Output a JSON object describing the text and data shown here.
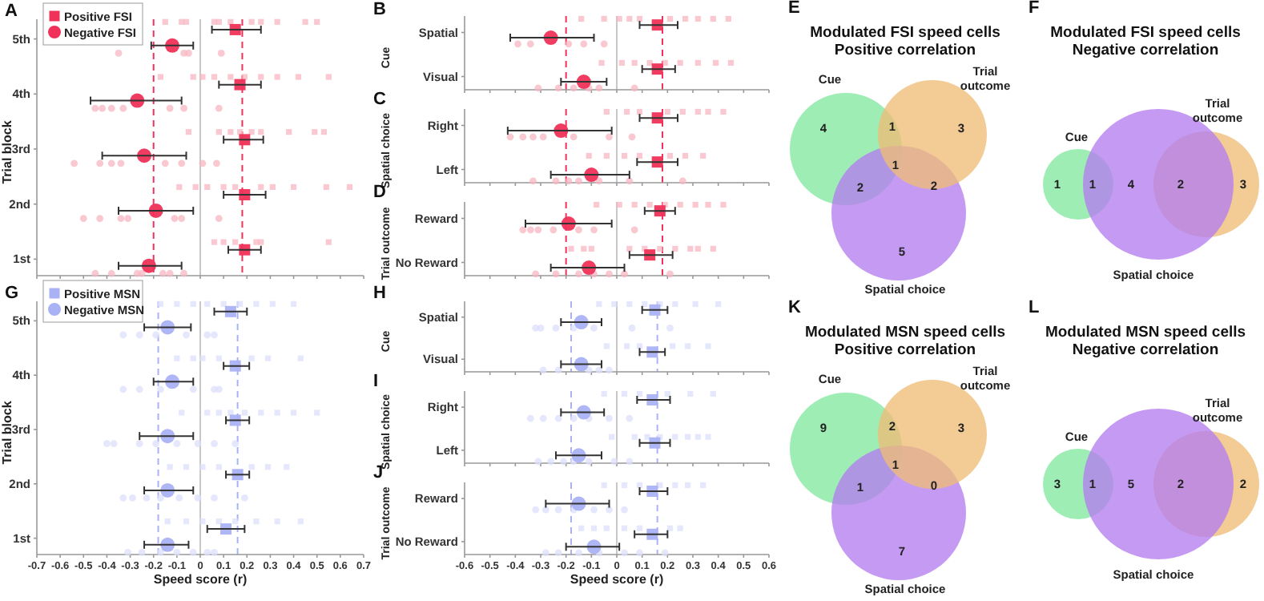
{
  "chart_data": [
    {
      "type": "scatter",
      "orientation": "horizontal",
      "annotations": [
        "A"
      ],
      "ylabel": "Trial block",
      "categories": [
        "5th",
        "4th",
        "3rd",
        "2nd",
        "1st"
      ],
      "xlim": [
        -0.7,
        0.7
      ],
      "xticks": [
        -0.7,
        -0.6,
        -0.5,
        -0.4,
        -0.3,
        -0.2,
        -0.1,
        0,
        0.1,
        0.2,
        0.3,
        0.4,
        0.5,
        0.6,
        0.7
      ],
      "tick_labels": "y",
      "legend": "top left",
      "ref_lines": [
        {
          "axis": "x",
          "value": 0,
          "color": "#c8c8c8",
          "line_style": "solid"
        },
        {
          "axis": "x",
          "value": -0.2,
          "color": "#f0325a",
          "line_style": "dashed"
        },
        {
          "axis": "x",
          "value": 0.18,
          "color": "#f0325a",
          "line_style": "dashed"
        }
      ],
      "series": [
        {
          "marker": "square",
          "color": "#f7b5c0",
          "x": [
            "5th",
            "5th",
            "5th",
            "5th",
            "5th",
            "5th",
            "5th",
            "5th",
            "5th",
            "5th",
            "5th",
            "4th",
            "4th",
            "4th",
            "4th",
            "4th",
            "4th",
            "4th",
            "4th",
            "4th",
            "4th",
            "3rd",
            "3rd",
            "3rd",
            "3rd",
            "3rd",
            "3rd",
            "3rd",
            "3rd",
            "3rd",
            "2nd",
            "2nd",
            "2nd",
            "2nd",
            "2nd",
            "2nd",
            "2nd",
            "2nd",
            "2nd",
            "2nd",
            "1st",
            "1st",
            "1st",
            "1st",
            "1st",
            "1st"
          ],
          "values": [
            -0.15,
            -0.08,
            -0.06,
            0.06,
            0.08,
            0.13,
            0.22,
            0.26,
            0.33,
            0.45,
            0.5,
            -0.17,
            -0.03,
            0.01,
            0.06,
            0.13,
            0.19,
            0.26,
            0.33,
            0.42,
            0.55,
            -0.05,
            0.08,
            0.13,
            0.17,
            0.22,
            0.26,
            0.38,
            0.49,
            0.53,
            -0.09,
            -0.02,
            0.03,
            0.1,
            0.15,
            0.26,
            0.31,
            0.4,
            0.54,
            0.64,
            0.06,
            0.1,
            0.15,
            0.24,
            0.26,
            0.55
          ]
        },
        {
          "marker": "circle",
          "color": "#f7b5c0",
          "x": [
            "5th",
            "5th",
            "5th",
            "5th",
            "4th",
            "4th",
            "4th",
            "4th",
            "4th",
            "4th",
            "4th",
            "3rd",
            "3rd",
            "3rd",
            "3rd",
            "3rd",
            "3rd",
            "3rd",
            "3rd",
            "2nd",
            "2nd",
            "2nd",
            "2nd",
            "2nd",
            "2nd",
            "2nd",
            "1st",
            "1st",
            "1st",
            "1st",
            "1st",
            "1st",
            "1st"
          ],
          "values": [
            -0.35,
            -0.07,
            -0.05,
            0.09,
            -0.45,
            -0.42,
            -0.38,
            -0.33,
            -0.13,
            -0.07,
            0.08,
            -0.54,
            -0.43,
            -0.38,
            -0.34,
            -0.15,
            -0.08,
            0.01,
            0.07,
            -0.5,
            -0.43,
            -0.34,
            -0.31,
            -0.11,
            -0.08,
            0.08,
            -0.45,
            -0.38,
            -0.27,
            -0.25,
            -0.16,
            -0.13,
            -0.07
          ]
        },
        {
          "name": "Positive FSI",
          "marker": "square",
          "color": "#f0325a",
          "values": [
            0.15,
            0.17,
            0.19,
            0.19,
            0.19
          ],
          "errors": [
            [
              0.05,
              0.26
            ],
            [
              0.08,
              0.26
            ],
            [
              0.1,
              0.27
            ],
            [
              0.1,
              0.28
            ],
            [
              0.12,
              0.26
            ]
          ]
        },
        {
          "name": "Negative FSI",
          "marker": "circle",
          "color": "#f0325a",
          "values": [
            -0.12,
            -0.27,
            -0.24,
            -0.19,
            -0.22
          ],
          "errors": [
            [
              -0.21,
              -0.03
            ],
            [
              -0.47,
              -0.08
            ],
            [
              -0.42,
              -0.06
            ],
            [
              -0.35,
              -0.03
            ],
            [
              -0.35,
              -0.08
            ]
          ]
        }
      ]
    },
    {
      "type": "scatter",
      "orientation": "horizontal",
      "annotations": [
        "B"
      ],
      "ylabel": "Cue",
      "categories": [
        "Spatial",
        "Visual"
      ],
      "xlim": [
        -0.6,
        0.6
      ],
      "xticks": [
        -0.6,
        -0.5,
        -0.4,
        -0.3,
        -0.2,
        -0.1,
        0,
        0.1,
        0.2,
        0.3,
        0.4,
        0.5,
        0.6
      ],
      "tick_labels": "y",
      "ref_lines": [
        {
          "axis": "x",
          "value": 0,
          "color": "#c8c8c8",
          "line_style": "solid"
        },
        {
          "axis": "x",
          "value": -0.2,
          "color": "#f0325a",
          "line_style": "dashed"
        },
        {
          "axis": "x",
          "value": 0.18,
          "color": "#f0325a",
          "line_style": "dashed"
        }
      ],
      "series": [
        {
          "marker": "square",
          "color": "#f7b5c0",
          "x": [
            "Spatial",
            "Spatial",
            "Spatial",
            "Spatial",
            "Spatial",
            "Spatial",
            "Spatial",
            "Spatial",
            "Spatial",
            "Spatial",
            "Visual",
            "Visual",
            "Visual",
            "Visual",
            "Visual",
            "Visual",
            "Visual",
            "Visual",
            "Visual"
          ],
          "values": [
            -0.14,
            -0.05,
            0.01,
            0.05,
            0.09,
            0.21,
            0.27,
            0.32,
            0.38,
            0.44,
            -0.06,
            0.02,
            0.07,
            0.13,
            0.19,
            0.25,
            0.32,
            0.39,
            0.45
          ]
        },
        {
          "marker": "circle",
          "color": "#f7b5c0",
          "x": [
            "Spatial",
            "Spatial",
            "Spatial",
            "Spatial",
            "Spatial",
            "Visual",
            "Visual",
            "Visual",
            "Visual",
            "Visual",
            "Visual"
          ],
          "values": [
            -0.39,
            -0.34,
            -0.19,
            -0.13,
            -0.05,
            -0.31,
            -0.23,
            -0.17,
            -0.11,
            -0.07,
            0.07
          ]
        },
        {
          "marker": "square",
          "color": "#f0325a",
          "values": [
            0.16,
            0.16
          ],
          "errors": [
            [
              0.09,
              0.24
            ],
            [
              0.1,
              0.23
            ]
          ]
        },
        {
          "marker": "circle",
          "color": "#f0325a",
          "values": [
            -0.26,
            -0.13
          ],
          "errors": [
            [
              -0.42,
              -0.09
            ],
            [
              -0.22,
              -0.04
            ]
          ]
        }
      ]
    },
    {
      "type": "scatter",
      "orientation": "horizontal",
      "annotations": [
        "C"
      ],
      "ylabel": "Spatial choice",
      "categories": [
        "Right",
        "Left"
      ],
      "xlim": [
        -0.6,
        0.6
      ],
      "xticks": [
        -0.6,
        -0.5,
        -0.4,
        -0.3,
        -0.2,
        -0.1,
        0,
        0.1,
        0.2,
        0.3,
        0.4,
        0.5,
        0.6
      ],
      "tick_labels": "y",
      "ref_lines": [
        {
          "axis": "x",
          "value": 0,
          "color": "#c8c8c8",
          "line_style": "solid"
        },
        {
          "axis": "x",
          "value": -0.2,
          "color": "#f0325a",
          "line_style": "dashed"
        },
        {
          "axis": "x",
          "value": 0.18,
          "color": "#f0325a",
          "line_style": "dashed"
        }
      ],
      "series": [
        {
          "marker": "square",
          "color": "#f7b5c0",
          "x": [
            "Right",
            "Right",
            "Right",
            "Right",
            "Right",
            "Right",
            "Right",
            "Right",
            "Left",
            "Left",
            "Left",
            "Left",
            "Left",
            "Left",
            "Left"
          ],
          "values": [
            -0.04,
            0.04,
            0.09,
            0.2,
            0.26,
            0.32,
            0.36,
            0.42,
            -0.11,
            -0.04,
            0.03,
            0.09,
            0.21,
            0.27,
            0.34
          ]
        },
        {
          "marker": "circle",
          "color": "#f7b5c0",
          "x": [
            "Right",
            "Right",
            "Right",
            "Right",
            "Right",
            "Right",
            "Right",
            "Left",
            "Left",
            "Left",
            "Left",
            "Left",
            "Left",
            "Left"
          ],
          "values": [
            -0.42,
            -0.37,
            -0.33,
            -0.29,
            -0.17,
            -0.03,
            0.06,
            -0.33,
            -0.24,
            -0.19,
            -0.15,
            -0.07,
            0.05,
            0.26
          ]
        },
        {
          "marker": "square",
          "color": "#f0325a",
          "values": [
            0.16,
            0.16
          ],
          "errors": [
            [
              0.09,
              0.24
            ],
            [
              0.08,
              0.24
            ]
          ]
        },
        {
          "marker": "circle",
          "color": "#f0325a",
          "values": [
            -0.22,
            -0.1
          ],
          "errors": [
            [
              -0.43,
              -0.02
            ],
            [
              -0.26,
              0.05
            ]
          ]
        }
      ]
    },
    {
      "type": "scatter",
      "orientation": "horizontal",
      "annotations": [
        "D"
      ],
      "ylabel": "Trial outcome",
      "categories": [
        "Reward",
        "No Reward"
      ],
      "xlim": [
        -0.6,
        0.6
      ],
      "xticks": [
        -0.6,
        -0.5,
        -0.4,
        -0.3,
        -0.2,
        -0.1,
        0,
        0.1,
        0.2,
        0.3,
        0.4,
        0.5,
        0.6
      ],
      "tick_labels": "y",
      "ref_lines": [
        {
          "axis": "x",
          "value": 0,
          "color": "#c8c8c8",
          "line_style": "solid"
        },
        {
          "axis": "x",
          "value": -0.2,
          "color": "#f0325a",
          "line_style": "dashed"
        },
        {
          "axis": "x",
          "value": 0.18,
          "color": "#f0325a",
          "line_style": "dashed"
        }
      ],
      "series": [
        {
          "marker": "square",
          "color": "#f7b5c0",
          "x": [
            "Reward",
            "Reward",
            "Reward",
            "Reward",
            "Reward",
            "Reward",
            "Reward",
            "Reward",
            "Reward",
            "No Reward",
            "No Reward",
            "No Reward",
            "No Reward",
            "No Reward",
            "No Reward",
            "No Reward",
            "No Reward",
            "No Reward",
            "No Reward"
          ],
          "values": [
            -0.08,
            0.01,
            0.07,
            0.13,
            0.19,
            0.25,
            0.31,
            0.36,
            0.42,
            -0.18,
            -0.13,
            -0.1,
            0.05,
            0.11,
            0.17,
            0.23,
            0.29,
            0.32,
            0.38
          ]
        },
        {
          "marker": "circle",
          "color": "#f7b5c0",
          "x": [
            "Reward",
            "Reward",
            "Reward",
            "Reward",
            "Reward",
            "Reward",
            "Reward",
            "No Reward",
            "No Reward",
            "No Reward",
            "No Reward",
            "No Reward",
            "No Reward",
            "No Reward"
          ],
          "values": [
            -0.37,
            -0.34,
            -0.31,
            -0.25,
            -0.15,
            -0.09,
            0.07,
            -0.32,
            -0.24,
            -0.15,
            -0.09,
            -0.03,
            0.03,
            0.21
          ]
        },
        {
          "marker": "square",
          "color": "#f0325a",
          "values": [
            0.17,
            0.13
          ],
          "errors": [
            [
              0.11,
              0.23
            ],
            [
              0.05,
              0.22
            ]
          ]
        },
        {
          "marker": "circle",
          "color": "#f0325a",
          "values": [
            -0.19,
            -0.11
          ],
          "errors": [
            [
              -0.36,
              -0.02
            ],
            [
              -0.26,
              0.03
            ]
          ]
        }
      ]
    },
    {
      "type": "other",
      "annotations": [
        "E",
        "4",
        "3",
        "5",
        "1",
        "2",
        "2",
        "1"
      ],
      "title": "Modulated FSI speed cells",
      "subtitle": "Positive correlation",
      "categories": [
        "Cue",
        "Trial outcome",
        "Spatial choice"
      ],
      "colors": [
        "#82e8a0",
        "#eebd77",
        "#b57ef0"
      ]
    },
    {
      "type": "other",
      "annotations": [
        "F",
        "1",
        "3",
        "4",
        "1",
        "2"
      ],
      "title": "Modulated FSI speed cells",
      "subtitle": "Negative correlation",
      "categories": [
        "Cue",
        "Trial outcome",
        "Spatial choice"
      ],
      "colors": [
        "#82e8a0",
        "#eebd77",
        "#b57ef0"
      ]
    },
    {
      "type": "scatter",
      "orientation": "horizontal",
      "annotations": [
        "G"
      ],
      "ylabel": "Trial block",
      "xlabel": "Speed score (r)",
      "categories": [
        "5th",
        "4th",
        "3rd",
        "2nd",
        "1st"
      ],
      "xlim": [
        -0.7,
        0.7
      ],
      "xticks": [
        -0.7,
        -0.6,
        -0.5,
        -0.4,
        -0.3,
        -0.2,
        -0.1,
        0,
        0.1,
        0.2,
        0.3,
        0.4,
        0.5,
        0.6,
        0.7
      ],
      "legend": "top left",
      "ref_lines": [
        {
          "axis": "x",
          "value": 0,
          "color": "#c8c8c8",
          "line_style": "solid"
        },
        {
          "axis": "x",
          "value": -0.18,
          "color": "#aab2f6",
          "line_style": "dashed"
        },
        {
          "axis": "x",
          "value": 0.16,
          "color": "#aab2f6",
          "line_style": "dashed"
        }
      ],
      "series": [
        {
          "marker": "square",
          "color": "#dcdffb",
          "x": [
            "5th",
            "5th",
            "5th",
            "5th",
            "5th",
            "5th",
            "5th",
            "5th",
            "5th",
            "4th",
            "4th",
            "4th",
            "4th",
            "4th",
            "4th",
            "4th",
            "3rd",
            "3rd",
            "3rd",
            "3rd",
            "3rd",
            "3rd",
            "3rd",
            "3rd",
            "3rd",
            "2nd",
            "2nd",
            "2nd",
            "2nd",
            "2nd",
            "2nd",
            "2nd",
            "1st",
            "1st",
            "1st",
            "1st",
            "1st",
            "1st",
            "1st",
            "1st"
          ],
          "values": [
            -0.17,
            -0.1,
            -0.03,
            0.03,
            0.1,
            0.17,
            0.24,
            0.31,
            0.4,
            -0.1,
            -0.03,
            0.01,
            0.08,
            0.22,
            0.29,
            0.43,
            -0.08,
            0.03,
            0.08,
            0.13,
            0.19,
            0.26,
            0.33,
            0.4,
            0.5,
            -0.13,
            -0.06,
            0.01,
            0.08,
            0.22,
            0.29,
            0.37,
            -0.14,
            -0.06,
            0.01,
            0.08,
            0.15,
            0.24,
            0.33,
            0.43
          ]
        },
        {
          "marker": "circle",
          "color": "#dcdffb",
          "x": [
            "5th",
            "5th",
            "5th",
            "5th",
            "5th",
            "5th",
            "4th",
            "4th",
            "4th",
            "4th",
            "4th",
            "4th",
            "3rd",
            "3rd",
            "3rd",
            "3rd",
            "3rd",
            "3rd",
            "3rd",
            "3rd",
            "2nd",
            "2nd",
            "2nd",
            "2nd",
            "2nd",
            "2nd",
            "2nd",
            "2nd",
            "1st",
            "1st",
            "1st",
            "1st",
            "1st",
            "1st",
            "1st"
          ],
          "values": [
            -0.33,
            -0.26,
            -0.19,
            -0.06,
            0.03,
            0.06,
            -0.33,
            -0.26,
            -0.17,
            -0.03,
            0.06,
            0.08,
            -0.4,
            -0.37,
            -0.26,
            -0.19,
            -0.1,
            -0.01,
            0.06,
            0.15,
            -0.33,
            -0.29,
            -0.23,
            -0.17,
            -0.09,
            -0.01,
            0.06,
            0.19,
            -0.31,
            -0.25,
            -0.17,
            -0.1,
            -0.03,
            0.03,
            0.06
          ]
        },
        {
          "name": "Positive MSN",
          "marker": "square",
          "color": "#aab2f6",
          "values": [
            0.13,
            0.15,
            0.15,
            0.16,
            0.11
          ],
          "errors": [
            [
              0.06,
              0.2
            ],
            [
              0.1,
              0.21
            ],
            [
              0.11,
              0.21
            ],
            [
              0.11,
              0.21
            ],
            [
              0.03,
              0.19
            ]
          ]
        },
        {
          "name": "Negative MSN",
          "marker": "circle",
          "color": "#aab2f6",
          "values": [
            -0.14,
            -0.12,
            -0.14,
            -0.14,
            -0.14
          ],
          "errors": [
            [
              -0.24,
              -0.04
            ],
            [
              -0.2,
              -0.03
            ],
            [
              -0.26,
              -0.03
            ],
            [
              -0.24,
              -0.03
            ],
            [
              -0.24,
              -0.05
            ]
          ]
        }
      ]
    },
    {
      "type": "scatter",
      "orientation": "horizontal",
      "annotations": [
        "H"
      ],
      "ylabel": "Cue",
      "categories": [
        "Spatial",
        "Visual"
      ],
      "xlim": [
        -0.6,
        0.6
      ],
      "xticks": [
        -0.6,
        -0.5,
        -0.4,
        -0.3,
        -0.2,
        -0.1,
        0,
        0.1,
        0.2,
        0.3,
        0.4,
        0.5,
        0.6
      ],
      "tick_labels": "y",
      "ref_lines": [
        {
          "axis": "x",
          "value": 0,
          "color": "#c8c8c8",
          "line_style": "solid"
        },
        {
          "axis": "x",
          "value": -0.18,
          "color": "#aab2f6",
          "line_style": "dashed"
        },
        {
          "axis": "x",
          "value": 0.16,
          "color": "#aab2f6",
          "line_style": "dashed"
        }
      ],
      "series": [
        {
          "marker": "square",
          "color": "#dcdffb",
          "x": [
            "Spatial",
            "Spatial",
            "Spatial",
            "Spatial",
            "Spatial",
            "Spatial",
            "Spatial",
            "Spatial",
            "Visual",
            "Visual",
            "Visual",
            "Visual",
            "Visual",
            "Visual"
          ],
          "values": [
            -0.07,
            -0.01,
            0.05,
            0.11,
            0.17,
            0.23,
            0.31,
            0.4,
            -0.04,
            0.04,
            0.09,
            0.22,
            0.28,
            0.36
          ]
        },
        {
          "marker": "circle",
          "color": "#dcdffb",
          "x": [
            "Spatial",
            "Spatial",
            "Spatial",
            "Spatial",
            "Spatial",
            "Spatial",
            "Spatial",
            "Visual",
            "Visual",
            "Visual",
            "Visual",
            "Visual"
          ],
          "values": [
            -0.32,
            -0.3,
            -0.24,
            -0.17,
            -0.09,
            0.06,
            0.21,
            -0.29,
            -0.23,
            -0.11,
            -0.07,
            -0.03
          ]
        },
        {
          "marker": "square",
          "color": "#aab2f6",
          "values": [
            0.15,
            0.14
          ],
          "errors": [
            [
              0.1,
              0.2
            ],
            [
              0.09,
              0.19
            ]
          ]
        },
        {
          "marker": "circle",
          "color": "#aab2f6",
          "values": [
            -0.14,
            -0.14
          ],
          "errors": [
            [
              -0.22,
              -0.06
            ],
            [
              -0.22,
              -0.06
            ]
          ]
        }
      ]
    },
    {
      "type": "scatter",
      "orientation": "horizontal",
      "annotations": [
        "I"
      ],
      "ylabel": "Spatial choice",
      "categories": [
        "Right",
        "Left"
      ],
      "xlim": [
        -0.6,
        0.6
      ],
      "xticks": [
        -0.6,
        -0.5,
        -0.4,
        -0.3,
        -0.2,
        -0.1,
        0,
        0.1,
        0.2,
        0.3,
        0.4,
        0.5,
        0.6
      ],
      "tick_labels": "y",
      "ref_lines": [
        {
          "axis": "x",
          "value": 0,
          "color": "#c8c8c8",
          "line_style": "solid"
        },
        {
          "axis": "x",
          "value": -0.18,
          "color": "#aab2f6",
          "line_style": "dashed"
        },
        {
          "axis": "x",
          "value": 0.16,
          "color": "#aab2f6",
          "line_style": "dashed"
        }
      ],
      "series": [
        {
          "marker": "square",
          "color": "#dcdffb",
          "x": [
            "Right",
            "Right",
            "Right",
            "Right",
            "Right",
            "Right",
            "Left",
            "Left",
            "Left",
            "Left",
            "Left",
            "Left",
            "Left",
            "Left"
          ],
          "values": [
            -0.05,
            0.03,
            0.09,
            0.2,
            0.29,
            0.38,
            -0.02,
            0.07,
            0.12,
            0.17,
            0.23,
            0.28,
            0.32,
            0.36
          ]
        },
        {
          "marker": "circle",
          "color": "#dcdffb",
          "x": [
            "Right",
            "Right",
            "Right",
            "Right",
            "Right",
            "Right",
            "Right",
            "Left",
            "Left",
            "Left",
            "Left",
            "Left",
            "Left",
            "Left"
          ],
          "values": [
            -0.34,
            -0.29,
            -0.23,
            -0.17,
            -0.11,
            -0.03,
            0.05,
            -0.31,
            -0.26,
            -0.21,
            -0.17,
            -0.11,
            -0.01,
            0.05
          ]
        },
        {
          "marker": "square",
          "color": "#aab2f6",
          "values": [
            0.14,
            0.15
          ],
          "errors": [
            [
              0.08,
              0.21
            ],
            [
              0.09,
              0.21
            ]
          ]
        },
        {
          "marker": "circle",
          "color": "#aab2f6",
          "values": [
            -0.13,
            -0.15
          ],
          "errors": [
            [
              -0.22,
              -0.05
            ],
            [
              -0.24,
              -0.06
            ]
          ]
        }
      ]
    },
    {
      "type": "scatter",
      "orientation": "horizontal",
      "annotations": [
        "J"
      ],
      "ylabel": "Trial outcome",
      "xlabel": "Speed score (r)",
      "categories": [
        "Reward",
        "No Reward"
      ],
      "xlim": [
        -0.6,
        0.6
      ],
      "xticks": [
        -0.6,
        -0.5,
        -0.4,
        -0.3,
        -0.2,
        -0.1,
        0,
        0.1,
        0.2,
        0.3,
        0.4,
        0.5,
        0.6
      ],
      "ref_lines": [
        {
          "axis": "x",
          "value": 0,
          "color": "#c8c8c8",
          "line_style": "solid"
        },
        {
          "axis": "x",
          "value": -0.18,
          "color": "#aab2f6",
          "line_style": "dashed"
        },
        {
          "axis": "x",
          "value": 0.16,
          "color": "#aab2f6",
          "line_style": "dashed"
        }
      ],
      "series": [
        {
          "marker": "square",
          "color": "#dcdffb",
          "x": [
            "Reward",
            "Reward",
            "Reward",
            "Reward",
            "Reward",
            "Reward",
            "Reward",
            "No Reward",
            "No Reward",
            "No Reward",
            "No Reward",
            "No Reward",
            "No Reward",
            "No Reward"
          ],
          "values": [
            -0.05,
            0.03,
            0.09,
            0.17,
            0.23,
            0.28,
            0.34,
            -0.14,
            -0.09,
            -0.04,
            0.03,
            0.09,
            0.21,
            0.25
          ]
        },
        {
          "marker": "circle",
          "color": "#dcdffb",
          "x": [
            "Reward",
            "Reward",
            "Reward",
            "Reward",
            "Reward",
            "Reward",
            "Reward",
            "No Reward",
            "No Reward",
            "No Reward",
            "No Reward",
            "No Reward",
            "No Reward",
            "No Reward"
          ],
          "values": [
            -0.32,
            -0.28,
            -0.23,
            -0.17,
            -0.09,
            -0.03,
            0.03,
            -0.28,
            -0.23,
            -0.15,
            -0.07,
            0.03,
            0.09,
            0.19
          ]
        },
        {
          "marker": "square",
          "color": "#aab2f6",
          "values": [
            0.14,
            0.14
          ],
          "errors": [
            [
              0.09,
              0.2
            ],
            [
              0.07,
              0.2
            ]
          ]
        },
        {
          "marker": "circle",
          "color": "#aab2f6",
          "values": [
            -0.15,
            -0.09
          ],
          "errors": [
            [
              -0.28,
              -0.03
            ],
            [
              -0.2,
              0.01
            ]
          ]
        }
      ]
    },
    {
      "type": "other",
      "annotations": [
        "K",
        "9",
        "3",
        "7",
        "2",
        "1",
        "0",
        "1"
      ],
      "title": "Modulated MSN speed cells",
      "subtitle": "Positive correlation",
      "categories": [
        "Cue",
        "Trial outcome",
        "Spatial choice"
      ],
      "colors": [
        "#82e8a0",
        "#eebd77",
        "#b57ef0"
      ]
    },
    {
      "type": "other",
      "annotations": [
        "L",
        "3",
        "2",
        "5",
        "1",
        "2"
      ],
      "title": "Modulated MSN speed cells",
      "subtitle": "Negative correlation",
      "categories": [
        "Cue",
        "Trial outcome",
        "Spatial choice"
      ],
      "colors": [
        "#82e8a0",
        "#eebd77",
        "#b57ef0"
      ]
    }
  ]
}
